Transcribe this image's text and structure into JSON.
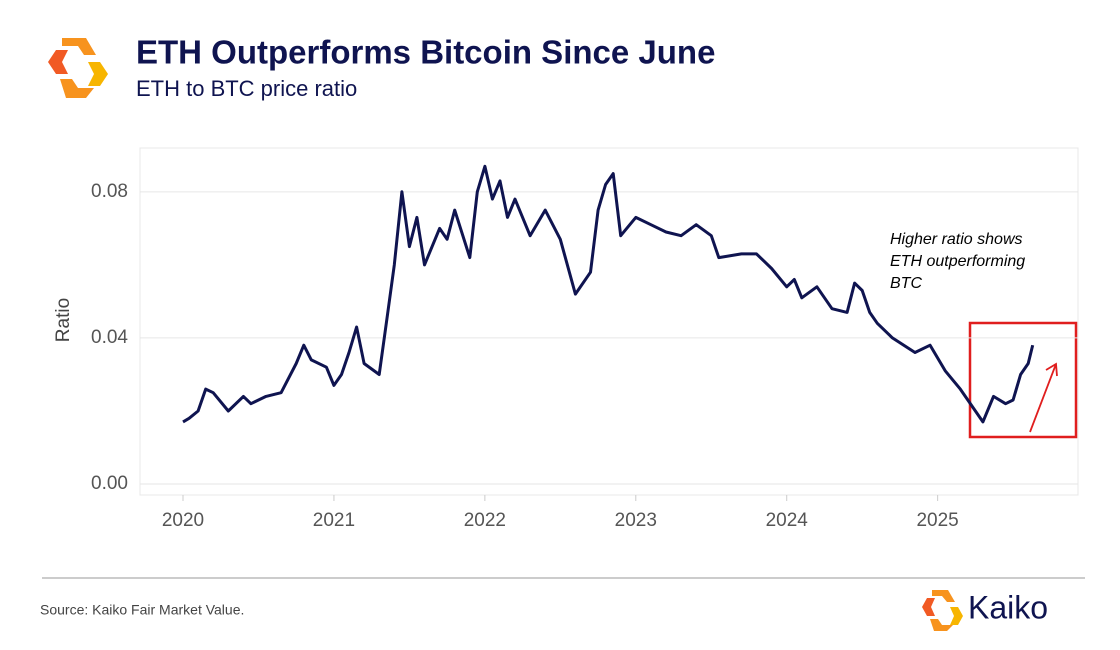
{
  "chart_data": {
    "type": "line",
    "title": "ETH Outperforms Bitcoin Since June",
    "subtitle": "ETH to BTC price ratio",
    "y_label": "Ratio",
    "annotation": [
      "Higher ratio shows",
      "ETH outperforming",
      "BTC"
    ],
    "source": "Source: Kaiko Fair Market Value.",
    "brand": "Kaiko",
    "color": "#0f1450",
    "x": [
      2020.0,
      2020.04,
      2020.1,
      2020.15,
      2020.2,
      2020.3,
      2020.4,
      2020.45,
      2020.55,
      2020.65,
      2020.75,
      2020.8,
      2020.85,
      2020.95,
      2021.0,
      2021.05,
      2021.1,
      2021.15,
      2021.2,
      2021.3,
      2021.35,
      2021.4,
      2021.45,
      2021.5,
      2021.55,
      2021.6,
      2021.7,
      2021.75,
      2021.8,
      2021.9,
      2021.95,
      2022.0,
      2022.05,
      2022.1,
      2022.15,
      2022.2,
      2022.3,
      2022.4,
      2022.5,
      2022.6,
      2022.7,
      2022.75,
      2022.8,
      2022.85,
      2022.9,
      2023.0,
      2023.1,
      2023.2,
      2023.3,
      2023.4,
      2023.5,
      2023.55,
      2023.7,
      2023.8,
      2023.9,
      2024.0,
      2024.05,
      2024.1,
      2024.2,
      2024.3,
      2024.4,
      2024.45,
      2024.5,
      2024.55,
      2024.6,
      2024.7,
      2024.85,
      2024.95,
      2025.05,
      2025.15,
      2025.25,
      2025.3,
      2025.37,
      2025.45,
      2025.5,
      2025.55,
      2025.6,
      2025.63
    ],
    "values": [
      0.017,
      0.018,
      0.02,
      0.026,
      0.025,
      0.02,
      0.024,
      0.022,
      0.024,
      0.025,
      0.033,
      0.038,
      0.034,
      0.032,
      0.027,
      0.03,
      0.036,
      0.043,
      0.033,
      0.03,
      0.045,
      0.06,
      0.08,
      0.065,
      0.073,
      0.06,
      0.07,
      0.067,
      0.075,
      0.062,
      0.08,
      0.087,
      0.078,
      0.083,
      0.073,
      0.078,
      0.068,
      0.075,
      0.067,
      0.052,
      0.058,
      0.075,
      0.082,
      0.085,
      0.068,
      0.073,
      0.071,
      0.069,
      0.068,
      0.071,
      0.068,
      0.062,
      0.063,
      0.063,
      0.059,
      0.054,
      0.056,
      0.051,
      0.054,
      0.048,
      0.047,
      0.055,
      0.053,
      0.047,
      0.044,
      0.04,
      0.036,
      0.038,
      0.031,
      0.026,
      0.02,
      0.017,
      0.024,
      0.022,
      0.023,
      0.03,
      0.033,
      0.038
    ],
    "xlim": [
      2019.715,
      2025.93
    ],
    "xticks": [
      2020,
      2021,
      2022,
      2023,
      2024,
      2025
    ],
    "ylim": [
      -0.003,
      0.092
    ],
    "yticks": [
      {
        "value": 0,
        "label": "0.00"
      },
      0.04,
      0.08
    ],
    "grid": true
  }
}
